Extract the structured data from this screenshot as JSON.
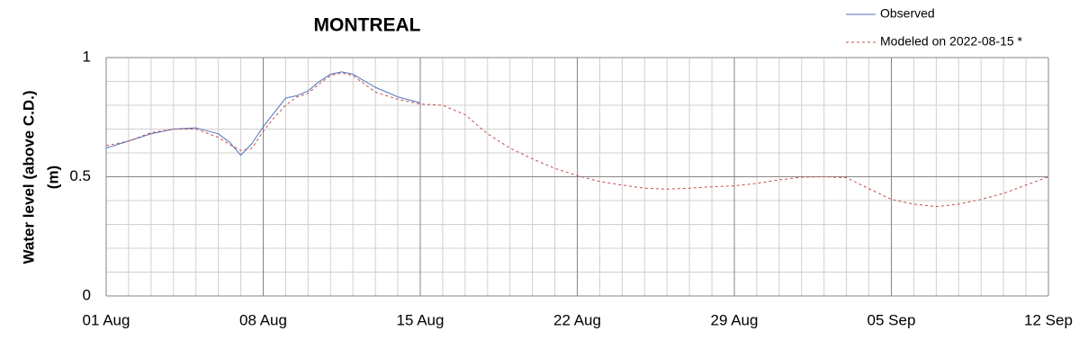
{
  "chart_data": {
    "type": "line",
    "title": "MONTREAL",
    "ylabel": [
      "Water level (above C.D.)",
      "(m)"
    ],
    "xlim": [
      0,
      42
    ],
    "xticks": [
      {
        "value": 0,
        "label": "01 Aug"
      },
      {
        "value": 7,
        "label": "08 Aug"
      },
      {
        "value": 14,
        "label": "15 Aug"
      },
      {
        "value": 21,
        "label": "22 Aug"
      },
      {
        "value": 28,
        "label": "29 Aug"
      },
      {
        "value": 35,
        "label": "05 Sep"
      },
      {
        "value": 42,
        "label": "12 Sep"
      }
    ],
    "ylim": [
      0,
      1
    ],
    "yticks": [
      0,
      0.5,
      1
    ],
    "grid": true,
    "minor_grid": {
      "x": 1,
      "y": 0.1
    },
    "legend": "top-right",
    "series": [
      {
        "name": "Observed",
        "color": "#4f72be",
        "dash": false,
        "x": [
          0,
          1,
          2,
          3,
          4,
          5,
          5.5,
          6,
          6.5,
          7,
          7.5,
          8,
          8.5,
          9,
          9.5,
          10,
          10.5,
          11,
          12,
          13,
          14
        ],
        "values": [
          0.62,
          0.65,
          0.68,
          0.7,
          0.705,
          0.68,
          0.645,
          0.59,
          0.64,
          0.71,
          0.77,
          0.83,
          0.84,
          0.86,
          0.9,
          0.93,
          0.94,
          0.93,
          0.875,
          0.835,
          0.81
        ]
      },
      {
        "name": "Modeled on 2022-08-15 *",
        "color": "#c0504d",
        "dash": true,
        "x": [
          0,
          1,
          2,
          3,
          4,
          5,
          5.5,
          6,
          6.5,
          7,
          7.5,
          8,
          8.5,
          9,
          9.5,
          10,
          10.5,
          11,
          12,
          13,
          14,
          15,
          16,
          17,
          18,
          19,
          20,
          21,
          22,
          23,
          24,
          25,
          26,
          27,
          28,
          29,
          30,
          31,
          32,
          33,
          34,
          35,
          36,
          37,
          38,
          39,
          40,
          41,
          42
        ],
        "values": [
          0.63,
          0.65,
          0.685,
          0.7,
          0.7,
          0.665,
          0.635,
          0.61,
          0.62,
          0.69,
          0.75,
          0.8,
          0.835,
          0.85,
          0.89,
          0.925,
          0.935,
          0.925,
          0.855,
          0.825,
          0.805,
          0.8,
          0.76,
          0.68,
          0.62,
          0.575,
          0.535,
          0.505,
          0.48,
          0.465,
          0.452,
          0.448,
          0.452,
          0.458,
          0.462,
          0.472,
          0.487,
          0.498,
          0.5,
          0.496,
          0.45,
          0.405,
          0.385,
          0.375,
          0.385,
          0.405,
          0.43,
          0.465,
          0.5
        ]
      }
    ]
  }
}
